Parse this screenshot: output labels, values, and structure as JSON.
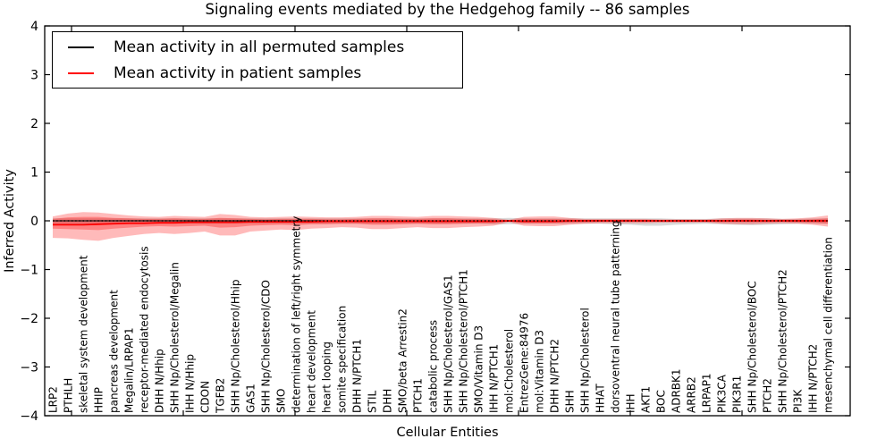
{
  "chart_data": {
    "type": "line",
    "title": "Signaling events mediated by the Hedgehog family -- 86 samples",
    "xlabel": "Cellular Entities",
    "ylabel": "Inferred Activity",
    "ylim": [
      -4,
      4
    ],
    "yticks": [
      4,
      3,
      2,
      1,
      0,
      -1,
      -2,
      -3,
      -4
    ],
    "ytick_labels": [
      "4",
      "3",
      "2",
      "1",
      "0",
      "−1",
      "−2",
      "−3",
      "−4"
    ],
    "grid": false,
    "legend": {
      "position": "upper left",
      "entries": [
        {
          "label": "Mean activity in all permuted samples",
          "color": "#000000"
        },
        {
          "label": "Mean activity in patient samples",
          "color": "#ff0000"
        }
      ]
    },
    "colors": {
      "patient_line": "#ff0000",
      "permuted_line": "#000000",
      "red_band": "#ff0000",
      "gray_band": "#808080"
    },
    "categories": [
      "LRP2",
      "PTHLH",
      "skeletal system development",
      "HHIP",
      "pancreas development",
      "Megalin/LRPAP1",
      "receptor-mediated endocytosis",
      "DHH N/Hhip",
      "SHH Np/Cholesterol/Megalin",
      "IHH N/Hhip",
      "CDON",
      "TGFB2",
      "SHH Np/Cholesterol/Hhip",
      "GAS1",
      "SHH Np/Cholesterol/CDO",
      "SMO",
      "determination of left/right symmetry",
      "heart development",
      "heart looping",
      "somite specification",
      "DHH N/PTCH1",
      "STIL",
      "DHH",
      "SMO/beta Arrestin2",
      "PTCH1",
      "catabolic process",
      "SHH Np/Cholesterol/GAS1",
      "SHH Np/Cholesterol/PTCH1",
      "SMO/Vitamin D3",
      "IHH N/PTCH1",
      "mol:Cholesterol",
      "EntrezGene:84976",
      "mol:Vitamin D3",
      "DHH N/PTCH2",
      "SHH",
      "SHH Np/Cholesterol",
      "HHAT",
      "dorsoventral neural tube patterning",
      "IHH",
      "AKT1",
      "BOC",
      "ADRBK1",
      "ARRB2",
      "LRPAP1",
      "PIK3CA",
      "PIK3R1",
      "SHH Np/Cholesterol/BOC",
      "PTCH2",
      "SHH Np/Cholesterol/PTCH2",
      "PI3K",
      "IHH N/PTCH2",
      "mesenchymal cell differentiation"
    ],
    "series": [
      {
        "name": "Mean activity in all permuted samples",
        "color": "#000000",
        "constant": 0
      },
      {
        "name": "Mean activity in patient samples",
        "color": "#ff0000",
        "values": [
          -0.08,
          -0.08,
          -0.08,
          -0.07,
          -0.06,
          -0.05,
          -0.05,
          -0.04,
          -0.04,
          -0.03,
          -0.03,
          -0.03,
          -0.03,
          -0.02,
          -0.02,
          -0.02,
          -0.02,
          -0.02,
          -0.01,
          -0.01,
          -0.01,
          -0.01,
          -0.01,
          -0.01,
          -0.01,
          -0.01,
          -0.01,
          -0.01,
          -0.01,
          -0.01,
          0.0,
          -0.01,
          -0.01,
          -0.01,
          0.0,
          0.0,
          0.0,
          0.0,
          0.0,
          0.0,
          0.0,
          0.0,
          0.0,
          0.0,
          0.0,
          0.0,
          0.0,
          0.0,
          0.0,
          0.0,
          0.0,
          0.0
        ]
      }
    ],
    "bands": {
      "red_outer": {
        "opacity": 0.27,
        "top": [
          0.09,
          0.15,
          0.18,
          0.17,
          0.14,
          0.11,
          0.09,
          0.08,
          0.1,
          0.09,
          0.08,
          0.14,
          0.12,
          0.08,
          0.07,
          0.08,
          0.09,
          0.08,
          0.07,
          0.07,
          0.08,
          0.1,
          0.1,
          0.09,
          0.08,
          0.1,
          0.1,
          0.09,
          0.08,
          0.06,
          0.02,
          0.08,
          0.09,
          0.09,
          0.06,
          0.04,
          0.04,
          0.04,
          0.04,
          0.04,
          0.03,
          0.03,
          0.03,
          0.03,
          0.05,
          0.06,
          0.06,
          0.05,
          0.04,
          0.05,
          0.07,
          0.11
        ],
        "bottom": [
          -0.35,
          -0.36,
          -0.39,
          -0.41,
          -0.35,
          -0.31,
          -0.27,
          -0.25,
          -0.27,
          -0.25,
          -0.22,
          -0.3,
          -0.3,
          -0.22,
          -0.2,
          -0.18,
          -0.19,
          -0.16,
          -0.15,
          -0.13,
          -0.14,
          -0.17,
          -0.17,
          -0.15,
          -0.13,
          -0.15,
          -0.15,
          -0.13,
          -0.12,
          -0.1,
          -0.03,
          -0.1,
          -0.11,
          -0.11,
          -0.08,
          -0.06,
          -0.05,
          -0.05,
          -0.05,
          -0.05,
          -0.04,
          -0.04,
          -0.04,
          -0.04,
          -0.06,
          -0.07,
          -0.07,
          -0.06,
          -0.05,
          -0.06,
          -0.08,
          -0.12
        ]
      },
      "red_inner": {
        "opacity": 0.3,
        "top": [
          0.04,
          0.07,
          0.08,
          0.08,
          0.06,
          0.05,
          0.04,
          0.04,
          0.05,
          0.04,
          0.04,
          0.06,
          0.05,
          0.04,
          0.03,
          0.04,
          0.04,
          0.04,
          0.03,
          0.03,
          0.04,
          0.05,
          0.05,
          0.04,
          0.04,
          0.05,
          0.05,
          0.04,
          0.04,
          0.03,
          0.01,
          0.04,
          0.04,
          0.04,
          0.03,
          0.02,
          0.02,
          0.02,
          0.02,
          0.02,
          0.01,
          0.01,
          0.01,
          0.01,
          0.02,
          0.03,
          0.03,
          0.02,
          0.02,
          0.02,
          0.03,
          0.05
        ],
        "bottom": [
          -0.16,
          -0.17,
          -0.18,
          -0.19,
          -0.16,
          -0.14,
          -0.12,
          -0.11,
          -0.12,
          -0.11,
          -0.1,
          -0.14,
          -0.13,
          -0.1,
          -0.09,
          -0.08,
          -0.09,
          -0.07,
          -0.07,
          -0.06,
          -0.06,
          -0.08,
          -0.08,
          -0.07,
          -0.06,
          -0.07,
          -0.07,
          -0.06,
          -0.05,
          -0.05,
          -0.01,
          -0.05,
          -0.05,
          -0.05,
          -0.04,
          -0.03,
          -0.02,
          -0.02,
          -0.02,
          -0.02,
          -0.02,
          -0.02,
          -0.02,
          -0.02,
          -0.03,
          -0.03,
          -0.03,
          -0.03,
          -0.02,
          -0.03,
          -0.04,
          -0.06
        ]
      },
      "gray": {
        "opacity": 0.3,
        "top": [
          0.05,
          0.05,
          0.05,
          0.05,
          0.05,
          0.05,
          0.05,
          0.05,
          0.05,
          0.05,
          0.05,
          0.05,
          0.05,
          0.05,
          0.05,
          0.05,
          0.05,
          0.05,
          0.05,
          0.05,
          0.05,
          0.05,
          0.05,
          0.05,
          0.05,
          0.05,
          0.05,
          0.05,
          0.05,
          0.05,
          0.06,
          0.05,
          0.05,
          0.05,
          0.05,
          0.05,
          0.05,
          0.05,
          0.05,
          0.05,
          0.05,
          0.04,
          0.04,
          0.04,
          0.05,
          0.05,
          0.05,
          0.05,
          0.04,
          0.04,
          0.05,
          0.05
        ],
        "bottom": [
          -0.06,
          -0.06,
          -0.06,
          -0.06,
          -0.06,
          -0.06,
          -0.06,
          -0.06,
          -0.06,
          -0.06,
          -0.06,
          -0.06,
          -0.06,
          -0.06,
          -0.06,
          -0.06,
          -0.06,
          -0.06,
          -0.06,
          -0.06,
          -0.06,
          -0.06,
          -0.06,
          -0.06,
          -0.06,
          -0.06,
          -0.06,
          -0.06,
          -0.06,
          -0.07,
          -0.07,
          -0.06,
          -0.06,
          -0.06,
          -0.06,
          -0.06,
          -0.06,
          -0.07,
          -0.08,
          -0.1,
          -0.1,
          -0.08,
          -0.07,
          -0.06,
          -0.07,
          -0.08,
          -0.09,
          -0.08,
          -0.07,
          -0.06,
          -0.06,
          -0.06
        ]
      }
    }
  }
}
